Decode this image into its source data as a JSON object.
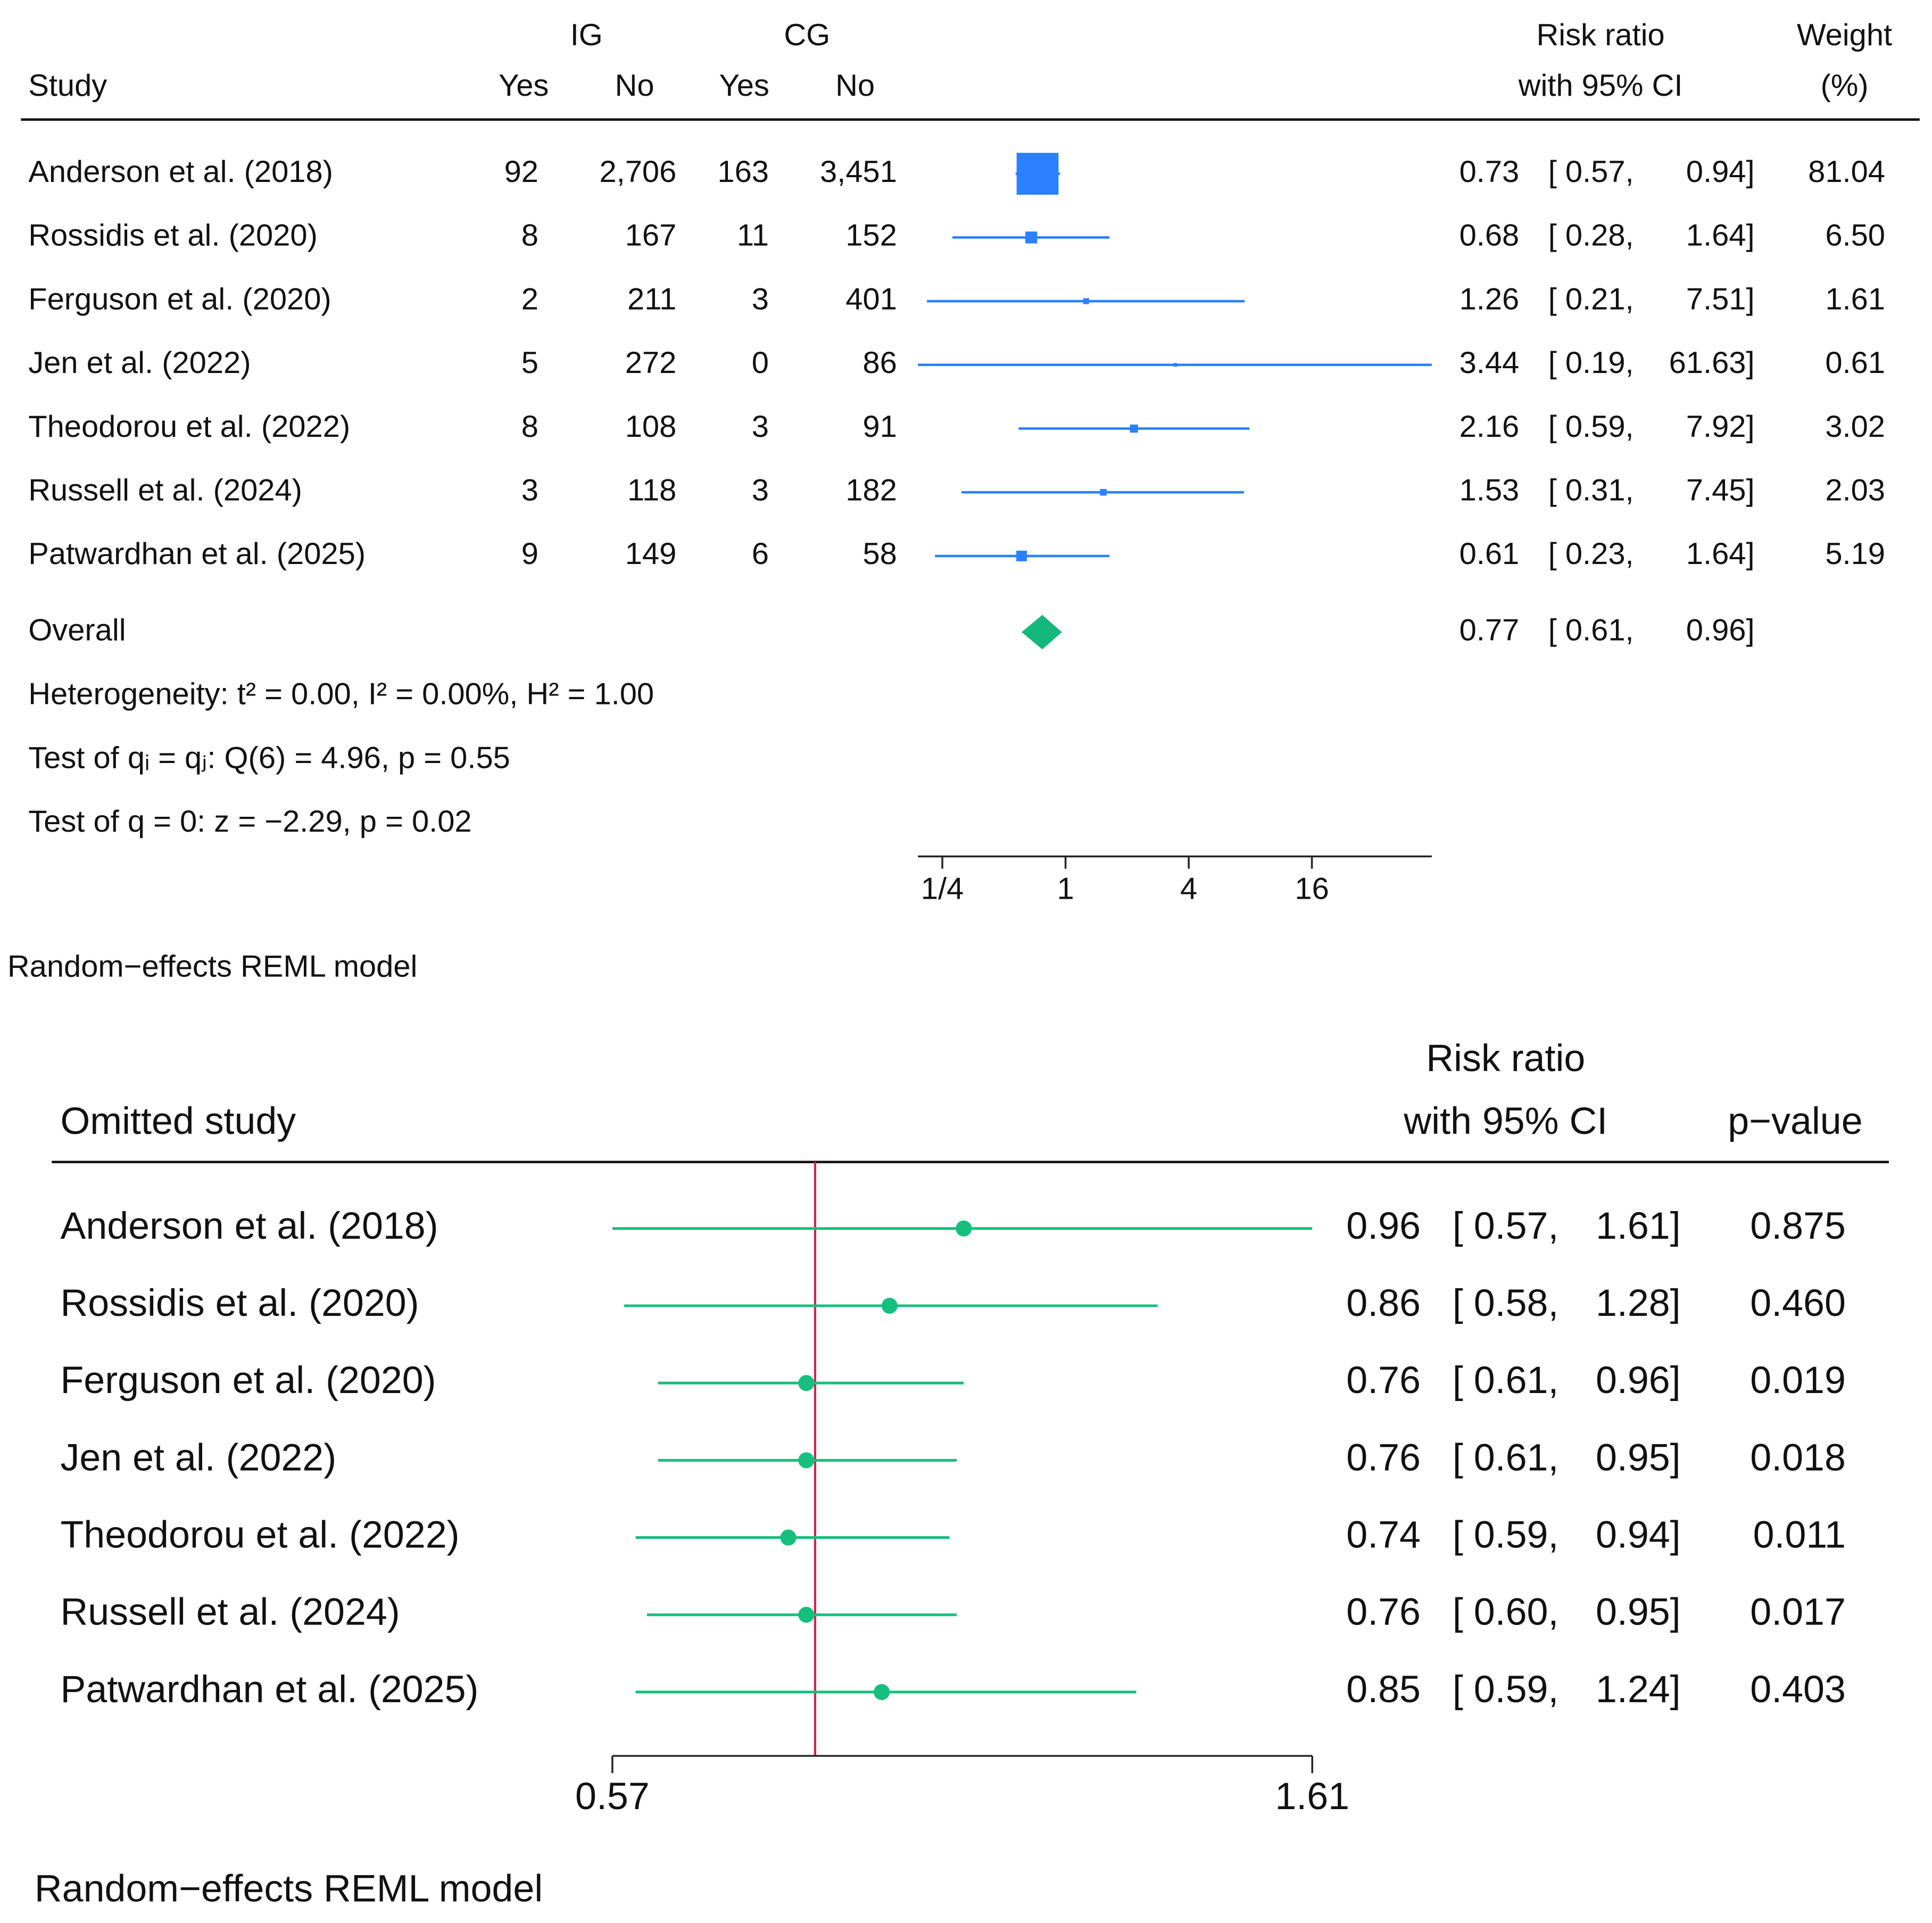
{
  "chart_data": [
    {
      "type": "forest",
      "headers": {
        "study": "Study",
        "ig": "IG",
        "cg": "CG",
        "ig_yes": "Yes",
        "ig_no": "No",
        "cg_yes": "Yes",
        "cg_no": "No",
        "effect": [
          "Risk ratio",
          "with 95% CI"
        ],
        "weight": [
          "Weight",
          "(%)"
        ]
      },
      "categories": [
        "Anderson et al. (2018)",
        "Rossidis et al. (2020)",
        "Ferguson et al. (2020)",
        "Jen et al. (2022)",
        "Theodorou et al. (2022)",
        "Russell et al. (2024)",
        "Patwardhan et al. (2025)"
      ],
      "ig_yes": {
        "values": [
          92,
          8,
          2,
          5,
          8,
          3,
          9
        ]
      },
      "ig_no": {
        "values": [
          2706,
          167,
          211,
          272,
          108,
          118,
          149
        ],
        "value_labels": [
          "2,706",
          "167",
          "211",
          "272",
          "108",
          "118",
          "149"
        ]
      },
      "cg_yes": {
        "values": [
          163,
          11,
          3,
          0,
          3,
          3,
          6
        ]
      },
      "cg_no": {
        "values": [
          3451,
          152,
          401,
          86,
          91,
          182,
          58
        ],
        "value_labels": [
          "3,451",
          "152",
          "401",
          "86",
          "91",
          "182",
          "58"
        ]
      },
      "rr": {
        "values": [
          0.73,
          0.68,
          1.26,
          3.44,
          2.16,
          1.53,
          0.61
        ]
      },
      "lower": {
        "values": [
          0.57,
          0.28,
          0.21,
          0.19,
          0.59,
          0.31,
          0.23
        ],
        "value_labels": [
          "[ 0.57,",
          "[ 0.28,",
          "[ 0.21,",
          "[ 0.19,",
          "[ 0.59,",
          "[ 0.31,",
          "[ 0.23,"
        ]
      },
      "upper": {
        "values": [
          0.94,
          1.64,
          7.51,
          61.63,
          7.92,
          7.45,
          1.64
        ],
        "value_labels": [
          "0.94]",
          "1.64]",
          "7.51]",
          "61.63]",
          "7.92]",
          "7.45]",
          "1.64]"
        ]
      },
      "weight": {
        "values": [
          81.04,
          6.5,
          1.61,
          0.61,
          3.02,
          2.03,
          5.19
        ],
        "value_labels": [
          "81.04",
          "6.50",
          "1.61",
          "0.61",
          "3.02",
          "2.03",
          "5.19"
        ]
      },
      "overall": {
        "label": "Overall",
        "rr": 0.77,
        "lower": {
          "value": 0.61,
          "label": "[ 0.61,"
        },
        "upper": {
          "value": 0.96,
          "label": "0.96]"
        }
      },
      "notes": [
        "Heterogeneity: t² = 0.00, I² = 0.00%, H² = 1.00",
        "Test of qᵢ = qⱼ: Q(6) = 4.96, p = 0.55",
        "Test of q = 0: z = −2.29, p = 0.02"
      ],
      "footnote": "Random−effects REML model",
      "xscale": "log",
      "xlim": [
        0.19,
        61.63
      ],
      "xticks": [
        {
          "value": 0.25,
          "label": "1/4"
        },
        1,
        4,
        16
      ],
      "color": "#2b80ff",
      "overall_color": "#15b87c"
    },
    {
      "type": "sensitivity",
      "headers": {
        "study": "Omitted study",
        "effect": [
          "Risk ratio",
          "with 95% CI"
        ],
        "p": "p−value"
      },
      "categories": [
        "Anderson et al. (2018)",
        "Rossidis et al. (2020)",
        "Ferguson et al. (2020)",
        "Jen et al. (2022)",
        "Theodorou et al. (2022)",
        "Russell et al. (2024)",
        "Patwardhan et al. (2025)"
      ],
      "rr": {
        "values": [
          0.96,
          0.86,
          0.76,
          0.76,
          0.74,
          0.76,
          0.85
        ]
      },
      "lower": {
        "values": [
          0.57,
          0.58,
          0.61,
          0.61,
          0.59,
          0.6,
          0.59
        ],
        "value_labels": [
          "[ 0.57,",
          "[ 0.58,",
          "[ 0.61,",
          "[ 0.61,",
          "[ 0.59,",
          "[ 0.60,",
          "[ 0.59,"
        ]
      },
      "upper": {
        "values": [
          1.61,
          1.28,
          0.96,
          0.95,
          0.94,
          0.95,
          1.24
        ],
        "value_labels": [
          "1.61]",
          "1.28]",
          "0.96]",
          "0.95]",
          "0.94]",
          "0.95]",
          "1.24]"
        ]
      },
      "p": {
        "values": [
          0.875,
          0.46,
          0.019,
          0.018,
          0.011,
          0.017,
          0.403
        ],
        "value_labels": [
          "0.875",
          "0.460",
          "0.019",
          "0.018",
          "0.011",
          "0.017",
          "0.403"
        ]
      },
      "reference_line": 0.77,
      "footnote": "Random−effects REML model",
      "xscale": "log",
      "xlim": [
        0.57,
        1.61
      ],
      "xticks": [
        0.57,
        1.61
      ],
      "color": "#17bf7f",
      "reference_color": "#d6204a"
    }
  ]
}
